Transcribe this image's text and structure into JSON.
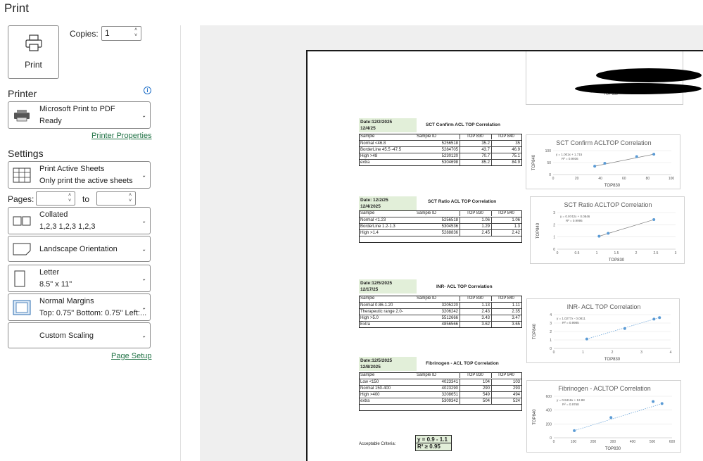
{
  "title": "Print",
  "print_button": "Print",
  "copies": {
    "label": "Copies:",
    "value": "1"
  },
  "printer": {
    "heading": "Printer",
    "name": "Microsoft Print to PDF",
    "status": "Ready",
    "properties_link": "Printer Properties"
  },
  "settings": {
    "heading": "Settings",
    "sheets": {
      "main": "Print Active Sheets",
      "sub": "Only print the active sheets"
    },
    "pages": {
      "label": "Pages:",
      "from": "",
      "to_label": "to",
      "to": ""
    },
    "collate": {
      "main": "Collated",
      "sub": "1,2,3    1,2,3    1,2,3"
    },
    "orientation": {
      "main": "Landscape Orientation"
    },
    "paper": {
      "main": "Letter",
      "sub": "8.5\" x 11\""
    },
    "margins": {
      "main": "Normal Margins",
      "sub": "Top: 0.75\" Bottom: 0.75\" Left:..."
    },
    "scaling": {
      "main": "Custom Scaling"
    },
    "page_setup_link": "Page Setup"
  },
  "preview": {
    "top_fragment": "TOP 830",
    "sections": [
      {
        "date1": "Date:12/2/2025",
        "date2": "12/4/25",
        "title": "SCT Confirm ACL TOP Correlation",
        "headers": [
          "Sample",
          "Sample ID",
          "TOP 830",
          "TOP 840"
        ],
        "rows": [
          [
            "Normal <46.8",
            "5256518",
            "35.2",
            "35"
          ],
          [
            "BorderLine 45.5 -47.5",
            "5284705",
            "43.7",
            "46.9"
          ],
          [
            "High >48",
            "5230120",
            "70.7",
            "75.1"
          ],
          [
            "extra",
            "5304698",
            "85.2",
            "84.9"
          ]
        ]
      },
      {
        "date1": "Date: 12/2/25",
        "date2": "12/4/2025",
        "title": "SCT Ratio ACL TOP Correlation",
        "headers": [
          "Sample",
          "Sample ID",
          "TOP 830",
          "TOP 840"
        ],
        "rows": [
          [
            "Normal <1.23",
            "5256518",
            "1.06",
            "1.06"
          ],
          [
            "BorderLine 1.2-1.3",
            "5304536",
            "1.29",
            "1.3"
          ],
          [
            "High >1.4",
            "5288836",
            "2.45",
            "2.42"
          ]
        ]
      },
      {
        "date1": "Date:12/5/2025",
        "date2": "12/17/25",
        "title": "INR- ACL TOP Correlation",
        "headers": [
          "Sample",
          "Sample ID",
          "TOP 830",
          "TOP 840"
        ],
        "rows": [
          [
            "Normal 0.86-1.20",
            "3205220",
            "1.13",
            "1.11"
          ],
          [
            "Therapeutic range 2.0-",
            "3206242",
            "2.43",
            "2.35"
          ],
          [
            "High >5.0",
            "5512666",
            "3.43",
            "3.47"
          ],
          [
            "Extra",
            "4856566",
            "3.62",
            "3.65"
          ]
        ]
      },
      {
        "date1": "Date:12/5/2025",
        "date2": "12/8/2025",
        "title": "Fibrinogen - ACL TOP Correlation",
        "headers": [
          "Sample",
          "Sample ID",
          "TOP 830",
          "TOP 840"
        ],
        "rows": [
          [
            "Low <150",
            "4023341",
            "104",
            "103"
          ],
          [
            "Normal 150-400",
            "4023290",
            "290",
            "293"
          ],
          [
            "High >400",
            "3208651",
            "549",
            "494"
          ],
          [
            "extra",
            "5309342",
            "504",
            "524"
          ]
        ]
      }
    ],
    "criteria_label": "Acceptable Criteria:",
    "criteria_line1": "y = 0.9 - 1.1",
    "criteria_line2": "R² ≥ 0.95"
  },
  "chart_data": [
    {
      "type": "scatter",
      "title": "SCT Confirm ACLTOP Correlation",
      "xlabel": "TOP830",
      "ylabel": "TOP840",
      "equation": "y = 1.001x + 1.715",
      "r2": "R² = 0.9936",
      "x": [
        35.2,
        43.7,
        70.7,
        85.2
      ],
      "y": [
        35,
        46.9,
        75.1,
        84.9
      ],
      "xlim": [
        0,
        100
      ],
      "ylim": [
        0,
        100
      ],
      "xticks": [
        0,
        20,
        40,
        60,
        80,
        100
      ],
      "yticks": [
        0,
        50,
        100
      ],
      "trend": "solid",
      "color": "#5b9bd5"
    },
    {
      "type": "scatter",
      "title": "SCT Ratio ACLTOP Correlation",
      "xlabel": "TOP830",
      "ylabel": "TOP840",
      "equation": "y = 0.9742x + 0.0846",
      "r2": "R² = 0.9995",
      "x": [
        1.06,
        1.29,
        2.45
      ],
      "y": [
        1.06,
        1.3,
        2.42
      ],
      "xlim": [
        0,
        3
      ],
      "ylim": [
        0,
        3
      ],
      "xticks": [
        0,
        0.5,
        1,
        1.5,
        2,
        2.5,
        3
      ],
      "yticks": [
        0,
        1,
        2,
        3
      ],
      "trend": "solid",
      "color": "#5b9bd5"
    },
    {
      "type": "scatter",
      "title": "INR- ACL TOP Correlation",
      "xlabel": "TOP830",
      "ylabel": "TOP840",
      "equation": "y = 1.0277x - 0.0811",
      "r2": "R² = 0.9985",
      "x": [
        1.13,
        2.43,
        3.43,
        3.62
      ],
      "y": [
        1.11,
        2.35,
        3.47,
        3.65
      ],
      "xlim": [
        0,
        4
      ],
      "ylim": [
        0,
        4
      ],
      "xticks": [
        0,
        1,
        2,
        3,
        4
      ],
      "yticks": [
        0,
        1,
        2,
        3,
        4
      ],
      "trend": "dotted",
      "color": "#5b9bd5"
    },
    {
      "type": "scatter",
      "title": "Fibrinogen - ACLTOP Correlation",
      "xlabel": "TOP830",
      "ylabel": "TOP840",
      "equation": "y = 0.9416x + 12.88",
      "r2": "R² = 0.9768",
      "x": [
        104,
        290,
        549,
        504
      ],
      "y": [
        103,
        293,
        494,
        524
      ],
      "xlim": [
        0,
        600
      ],
      "ylim": [
        0,
        600
      ],
      "xticks": [
        0,
        100,
        200,
        300,
        400,
        500,
        600
      ],
      "yticks": [
        0,
        200,
        400,
        600
      ],
      "trend": "dotted",
      "color": "#5b9bd5"
    }
  ]
}
